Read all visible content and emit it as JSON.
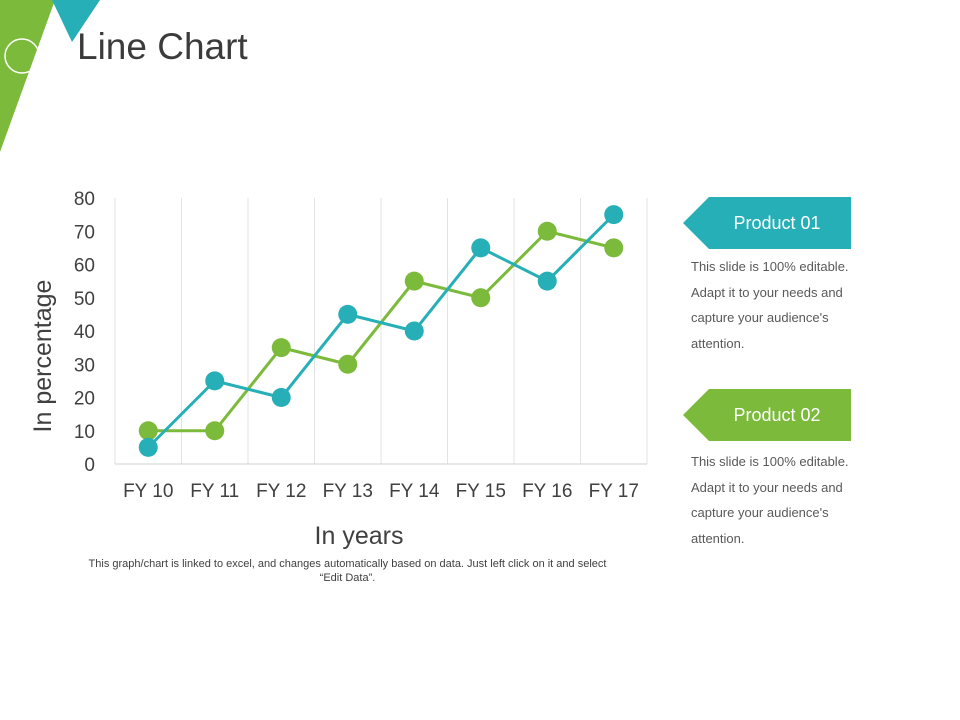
{
  "slide": {
    "title": "Line Chart",
    "footnote": "This graph/chart is linked to excel, and changes automatically based on data. Just left click on it and select “Edit Data”."
  },
  "colors": {
    "teal": "#26AFB6",
    "green": "#7BBA3A",
    "grid": "#E3E3E3",
    "text": "#404040"
  },
  "legend": [
    {
      "label": "Product 01",
      "color": "#26AFB6",
      "description": "This slide is 100% editable. Adapt it to your needs and capture your audience's attention."
    },
    {
      "label": "Product 02",
      "color": "#7BBA3A",
      "description": "This slide is 100% editable. Adapt it to your needs and capture your audience's attention."
    }
  ],
  "chart_data": {
    "type": "line",
    "categories": [
      "FY 10",
      "FY 11",
      "FY 12",
      "FY 13",
      "FY 14",
      "FY 15",
      "FY 16",
      "FY 17"
    ],
    "series": [
      {
        "name": "Product 01",
        "color": "#26AFB6",
        "values": [
          5,
          25,
          20,
          45,
          40,
          65,
          55,
          75
        ]
      },
      {
        "name": "Product 02",
        "color": "#7BBA3A",
        "values": [
          10,
          10,
          35,
          30,
          55,
          50,
          70,
          65
        ]
      }
    ],
    "xlabel": "In years",
    "ylabel": "In percentage",
    "ylim": [
      0,
      80
    ],
    "yticks": [
      0,
      10,
      20,
      30,
      40,
      50,
      60,
      70,
      80
    ],
    "grid": "vertical",
    "legend_position": "right"
  }
}
